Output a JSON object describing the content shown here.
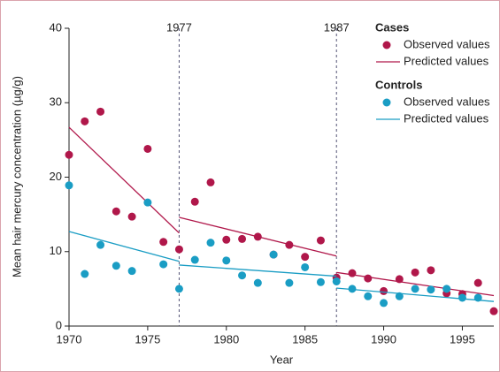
{
  "chart_data": {
    "type": "scatter",
    "x_label": "Year",
    "y_label": "Mean hair mercury concentration (µg/g)",
    "xlim": [
      1970,
      1997
    ],
    "ylim": [
      0,
      40
    ],
    "xticks": [
      1970,
      1975,
      1980,
      1985,
      1990,
      1995
    ],
    "yticks": [
      0,
      10,
      20,
      30,
      40
    ],
    "breakpoints": [
      1977,
      1987
    ],
    "groups": [
      {
        "name": "Cases",
        "color": "#b0174a",
        "observed": {
          "name": "Observed values",
          "x": [
            1970,
            1971,
            1972,
            1973,
            1974,
            1975,
            1976,
            1977,
            1978,
            1979,
            1980,
            1981,
            1982,
            1983,
            1984,
            1985,
            1986,
            1987,
            1988,
            1989,
            1990,
            1991,
            1992,
            1993,
            1994,
            1995,
            1996,
            1997
          ],
          "values": [
            23.0,
            27.5,
            28.8,
            15.4,
            14.7,
            23.8,
            11.3,
            10.3,
            16.7,
            19.3,
            11.6,
            11.7,
            12.0,
            9.6,
            10.9,
            9.3,
            11.5,
            6.5,
            7.1,
            6.4,
            4.7,
            6.3,
            7.2,
            7.5,
            4.4,
            4.3,
            5.8,
            2.0
          ]
        },
        "predicted": {
          "name": "Predicted values",
          "segments": [
            {
              "x": [
                1970,
                1977
              ],
              "values": [
                26.7,
                12.5
              ]
            },
            {
              "x": [
                1977,
                1987
              ],
              "values": [
                14.6,
                9.4
              ]
            },
            {
              "x": [
                1987,
                1997
              ],
              "values": [
                7.2,
                4.1
              ]
            }
          ]
        }
      },
      {
        "name": "Controls",
        "color": "#1a9dc4",
        "observed": {
          "name": "Observed values",
          "x": [
            1970,
            1971,
            1972,
            1973,
            1974,
            1975,
            1976,
            1977,
            1978,
            1979,
            1980,
            1981,
            1982,
            1983,
            1984,
            1985,
            1986,
            1987,
            1988,
            1989,
            1990,
            1991,
            1992,
            1993,
            1994,
            1995,
            1996
          ],
          "values": [
            18.9,
            7.0,
            10.9,
            8.1,
            7.4,
            16.6,
            8.3,
            5.0,
            8.9,
            11.2,
            8.8,
            6.8,
            5.8,
            9.6,
            5.8,
            7.9,
            5.9,
            6.0,
            5.0,
            4.0,
            3.1,
            4.0,
            5.0,
            4.9,
            5.0,
            3.8,
            3.8
          ]
        },
        "predicted": {
          "name": "Predicted values",
          "segments": [
            {
              "x": [
                1970,
                1977
              ],
              "values": [
                12.7,
                8.7
              ]
            },
            {
              "x": [
                1977,
                1987
              ],
              "values": [
                8.2,
                6.7
              ]
            },
            {
              "x": [
                1987,
                1997
              ],
              "values": [
                5.1,
                3.3
              ]
            }
          ]
        }
      }
    ]
  }
}
